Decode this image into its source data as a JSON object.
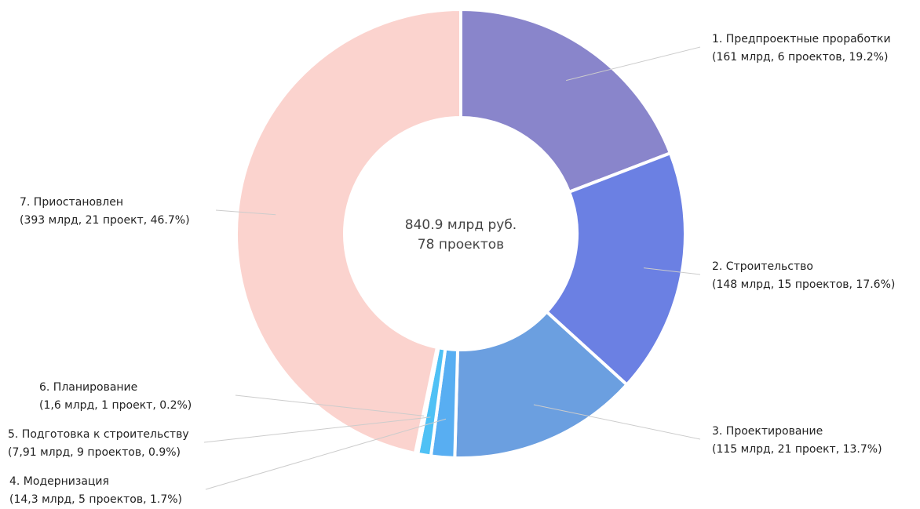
{
  "chart_data": {
    "type": "donut",
    "center_label": [
      "840.9 млрд руб.",
      "78 проектов"
    ],
    "categories": [
      "1. Предпроектные проработки",
      "2. Строительство",
      "3. Проектирование",
      "4. Модернизация",
      "5. Подготовка к строительству",
      "6. Планирование",
      "7. Приостановлен"
    ],
    "values": [
      161,
      148,
      115,
      14.3,
      7.91,
      1.6,
      393
    ],
    "value_labels": [
      "(161 млрд, 6 проектов, 19.2%)",
      "(148 млрд, 15 проектов, 17.6%)",
      "(115 млрд, 21 проект, 13.7%)",
      "(14,3 млрд, 5 проектов, 1.7%)",
      "(7,91 млрд, 9 проектов, 0.9%)",
      "(1,6 млрд, 1 проект, 0.2%)",
      "(393 млрд, 21 проект, 46.7%)"
    ],
    "colors": [
      "#8985cb",
      "#6b80e3",
      "#6b9fe0",
      "#58aef2",
      "#4fc1f5",
      "#9fd6f2",
      "#fbd3ce"
    ]
  }
}
